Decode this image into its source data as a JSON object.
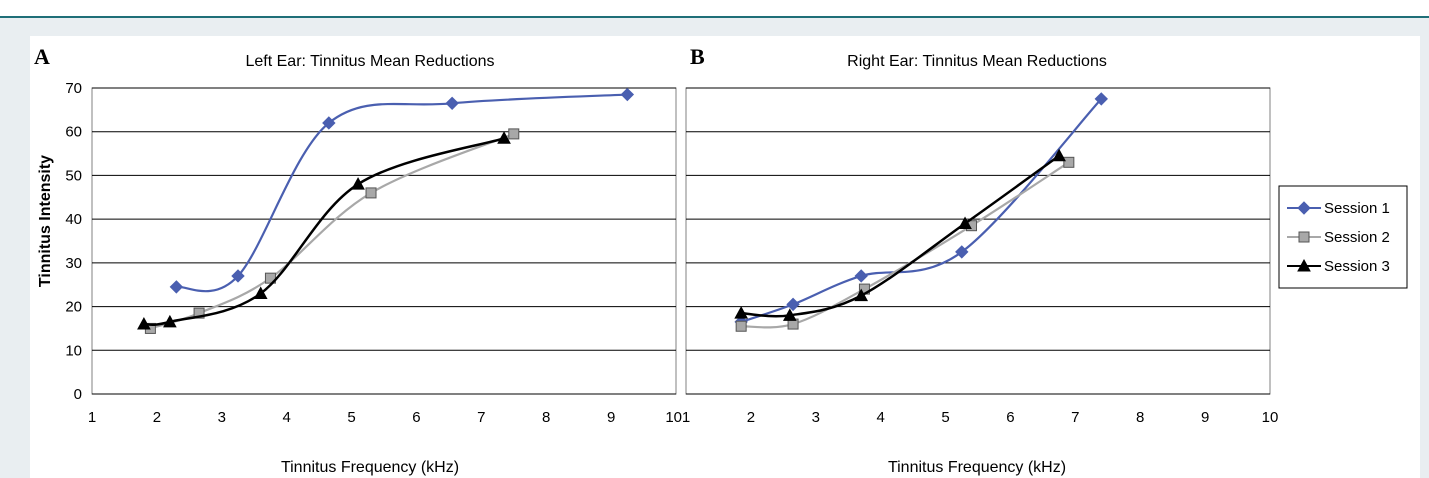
{
  "colors": {
    "session1": "#4a5fb0",
    "session2": "#a8a8a8",
    "session3": "#000000"
  },
  "legend": {
    "items": [
      {
        "label": "Session 1",
        "marker": "diamond",
        "color": "#4a5fb0"
      },
      {
        "label": "Session 2",
        "marker": "square",
        "color": "#a8a8a8"
      },
      {
        "label": "Session 3",
        "marker": "triangle",
        "color": "#000000"
      }
    ],
    "placement": "right"
  },
  "chart_data": [
    {
      "type": "line",
      "panel_letter": "A",
      "title": "Left Ear: Tinnitus Mean Reductions",
      "xlabel": "Tinnitus Frequency (kHz)",
      "ylabel": "Tinnitus Intensity",
      "xlim": [
        1,
        10
      ],
      "ylim": [
        0,
        70
      ],
      "xticks": [
        "1",
        "2",
        "3",
        "4",
        "5",
        "6",
        "7",
        "8",
        "9",
        "10"
      ],
      "yticks": [
        "0",
        "10",
        "20",
        "30",
        "40",
        "50",
        "60",
        "70"
      ],
      "grid": "horizontal",
      "smooth": true,
      "series": [
        {
          "name": "Session 1",
          "x": [
            2.3,
            3.25,
            4.65,
            6.55,
            9.25
          ],
          "y": [
            24.5,
            27,
            62,
            66.5,
            68.5
          ]
        },
        {
          "name": "Session 2",
          "x": [
            1.9,
            2.65,
            3.75,
            5.3,
            7.5
          ],
          "y": [
            15,
            18.5,
            26.5,
            46,
            59.5
          ]
        },
        {
          "name": "Session 3",
          "x": [
            1.8,
            2.2,
            3.6,
            5.1,
            7.35
          ],
          "y": [
            16,
            16.5,
            23,
            48,
            58.5
          ]
        }
      ]
    },
    {
      "type": "line",
      "panel_letter": "B",
      "title": "Right Ear: Tinnitus Mean Reductions",
      "xlabel": "Tinnitus Frequency (kHz)",
      "ylabel": "",
      "xlim": [
        1,
        10
      ],
      "ylim": [
        0,
        70
      ],
      "xticks": [
        "1",
        "2",
        "3",
        "4",
        "5",
        "6",
        "7",
        "8",
        "9",
        "10"
      ],
      "yticks": [],
      "grid": "horizontal",
      "smooth": true,
      "series": [
        {
          "name": "Session 1",
          "x": [
            1.85,
            2.65,
            3.7,
            5.25,
            7.4
          ],
          "y": [
            16.5,
            20.5,
            27,
            32.5,
            67.5
          ]
        },
        {
          "name": "Session 2",
          "x": [
            1.85,
            2.65,
            3.75,
            5.4,
            6.9
          ],
          "y": [
            15.5,
            16,
            24,
            38.5,
            53
          ]
        },
        {
          "name": "Session 3",
          "x": [
            1.85,
            2.6,
            3.7,
            5.3,
            6.75
          ],
          "y": [
            18.5,
            18,
            22.5,
            39,
            54.5
          ]
        }
      ]
    }
  ]
}
